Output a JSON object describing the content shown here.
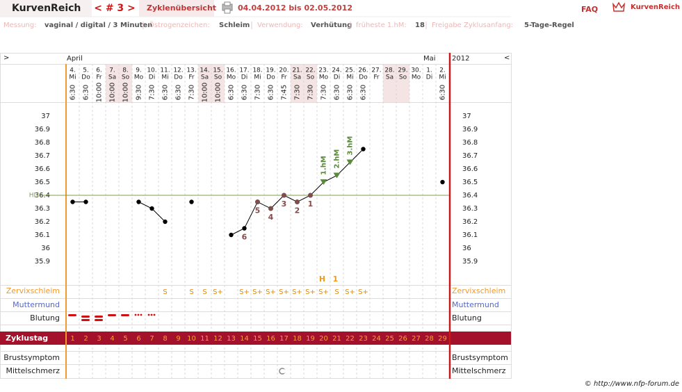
{
  "header": {
    "title": "KurvenReich",
    "cycle_nav": "< # 3 >",
    "overview_button": "Zyklenübersicht",
    "date_range": "04.04.2012 bis 02.05.2012",
    "faq": "FAQ",
    "logo": "KurvenReich"
  },
  "info": [
    {
      "label": "Messung:",
      "value": "vaginal / digital / 3 Minuten"
    },
    {
      "label": "Östrogenzeichen:",
      "value": "Schleim"
    },
    {
      "label": "Verwendung:",
      "value": "Verhütung"
    },
    {
      "label": "früheste 1.hM:",
      "value": "18"
    },
    {
      "label": "Freigabe Zyklusanfang:",
      "value": "5-Tage-Regel"
    }
  ],
  "chart_data": {
    "type": "line",
    "nav_left": ">",
    "nav_right": "<",
    "year": "2012",
    "months": [
      "April",
      null,
      null,
      null,
      null,
      null,
      null,
      null,
      null,
      null,
      null,
      null,
      null,
      null,
      null,
      null,
      null,
      null,
      null,
      null,
      null,
      null,
      null,
      null,
      null,
      null,
      null,
      "Mai",
      null
    ],
    "categories": [
      "4.",
      "5.",
      "6.",
      "7.",
      "8.",
      "9.",
      "10.",
      "11.",
      "12.",
      "13.",
      "14.",
      "15.",
      "16.",
      "17.",
      "18.",
      "19.",
      "20.",
      "21.",
      "22.",
      "23.",
      "24.",
      "25.",
      "26.",
      "27.",
      "28.",
      "29.",
      "30.",
      "1.",
      "2."
    ],
    "weekdays": [
      "Mi",
      "Do",
      "Fr",
      "Sa",
      "So",
      "Mo",
      "Di",
      "Mi",
      "Do",
      "Fr",
      "Sa",
      "So",
      "Mo",
      "Di",
      "Mi",
      "Do",
      "Fr",
      "Sa",
      "So",
      "Mo",
      "Di",
      "Mi",
      "Do",
      "Fr",
      "Sa",
      "So",
      "Mo",
      "Di",
      "Mi"
    ],
    "times": [
      "6:30",
      "6:30",
      "10:00",
      "10:00",
      "10:00",
      "9:30",
      "7:30",
      "6:30",
      "6:30",
      "7:30",
      "10:00",
      "10:00",
      "6:30",
      "6:30",
      "7:30",
      "6:30",
      "7:45",
      "7:30",
      "7:30",
      "7:30",
      "6:30",
      "6:30",
      "6:30",
      null,
      null,
      null,
      null,
      null,
      "6:30"
    ],
    "weekend_columns": [
      3,
      4,
      10,
      11,
      17,
      18,
      24,
      25
    ],
    "values": [
      36.35,
      36.35,
      null,
      null,
      null,
      36.35,
      36.3,
      36.2,
      null,
      36.35,
      null,
      null,
      36.1,
      36.15,
      36.35,
      36.3,
      36.4,
      36.35,
      36.4,
      36.5,
      36.55,
      36.65,
      36.75,
      null,
      null,
      null,
      null,
      null,
      36.5
    ],
    "color": "#000000",
    "point_colors": [
      null,
      null,
      null,
      null,
      null,
      null,
      null,
      null,
      null,
      null,
      null,
      null,
      null,
      null,
      "#8a4a4a",
      "#8a4a4a",
      "#8a4a4a",
      "#8a4a4a",
      "#8a4a4a",
      "#5a8a3a",
      "#5a8a3a",
      "#5a8a3a",
      null,
      null,
      null,
      null,
      null,
      null,
      null
    ],
    "point_labels": [
      null,
      null,
      null,
      null,
      null,
      null,
      null,
      null,
      null,
      null,
      null,
      null,
      null,
      "6",
      "5",
      "4",
      "3",
      "2",
      "1",
      null,
      null,
      null,
      null,
      null,
      null,
      null,
      null,
      null,
      null
    ],
    "hm_labels": [
      null,
      null,
      null,
      null,
      null,
      null,
      null,
      null,
      null,
      null,
      null,
      null,
      null,
      null,
      null,
      null,
      null,
      null,
      null,
      "1.hM",
      "2.hM",
      "3.hM",
      null,
      null,
      null,
      null,
      null,
      null,
      null
    ],
    "ylim": [
      35.7,
      37.1
    ],
    "yticks": [
      37,
      36.9,
      36.8,
      36.7,
      36.6,
      36.5,
      36.4,
      36.3,
      36.2,
      36.1,
      36,
      35.9
    ],
    "coverline": {
      "value": 36.4,
      "label": "HLi",
      "color": "#7aa04a"
    },
    "peak_marks": [
      null,
      null,
      null,
      null,
      null,
      null,
      null,
      null,
      null,
      null,
      null,
      null,
      null,
      null,
      null,
      null,
      null,
      null,
      null,
      "H",
      "1",
      null,
      null,
      null,
      null,
      null,
      null,
      null,
      null
    ],
    "cervix": {
      "label": "Zervixschleim",
      "values": [
        null,
        null,
        null,
        null,
        null,
        null,
        null,
        "S",
        null,
        "S",
        "S",
        "S+",
        null,
        "S+",
        "S+",
        "S+",
        "S+",
        "S+",
        "S+",
        "S+",
        "S",
        "S+",
        "S+",
        null,
        null,
        null,
        null,
        null,
        null
      ]
    },
    "rows": {
      "cervix_os": "Muttermund",
      "bleeding": "Blutung",
      "breast": "Brustsymptom",
      "mittelschmerz": "Mittelschmerz"
    },
    "cycle_days": {
      "label": "Zyklustag",
      "values": [
        1,
        2,
        3,
        4,
        5,
        6,
        7,
        8,
        9,
        10,
        11,
        12,
        13,
        14,
        15,
        16,
        17,
        18,
        19,
        20,
        21,
        22,
        23,
        24,
        25,
        26,
        27,
        28,
        29
      ]
    }
  },
  "footer": "© http://www.nfp-forum.de"
}
